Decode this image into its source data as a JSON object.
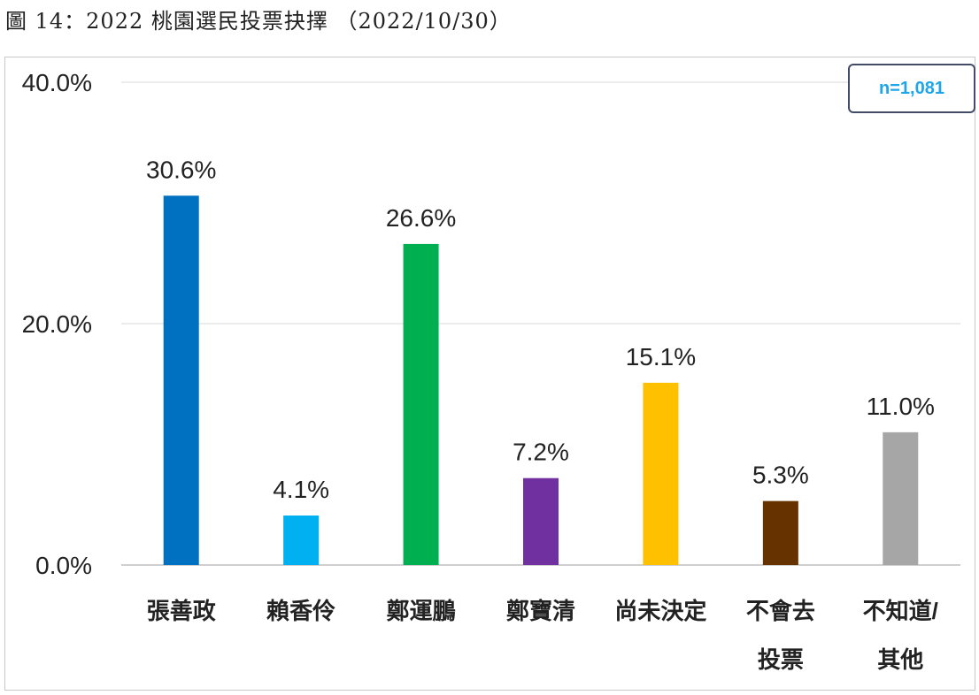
{
  "figure_caption": "圖 14：2022 桃園選民投票抉擇 （2022/10/30）",
  "sample_size": "n=1,081",
  "chart_data": {
    "type": "bar",
    "title": "",
    "xlabel": "",
    "ylabel": "",
    "ylim": [
      0,
      40
    ],
    "y_ticks": [
      {
        "value": 0,
        "label": "0.0%"
      },
      {
        "value": 20,
        "label": "20.0%"
      },
      {
        "value": 40,
        "label": "40.0%"
      }
    ],
    "grid": true,
    "categories": [
      {
        "lines": [
          "張善政"
        ]
      },
      {
        "lines": [
          "賴香伶"
        ]
      },
      {
        "lines": [
          "鄭運鵬"
        ]
      },
      {
        "lines": [
          "鄭寶清"
        ]
      },
      {
        "lines": [
          "尚未決定"
        ]
      },
      {
        "lines": [
          "不會去",
          "投票"
        ]
      },
      {
        "lines": [
          "不知道/",
          "其他"
        ]
      }
    ],
    "values": [
      30.6,
      4.1,
      26.6,
      7.2,
      15.1,
      5.3,
      11.0
    ],
    "value_labels": [
      "30.6%",
      "4.1%",
      "26.6%",
      "7.2%",
      "15.1%",
      "5.3%",
      "11.0%"
    ],
    "colors": [
      "#0070c0",
      "#00b0f0",
      "#00b050",
      "#7030a0",
      "#ffc000",
      "#663300",
      "#a6a6a6"
    ]
  }
}
